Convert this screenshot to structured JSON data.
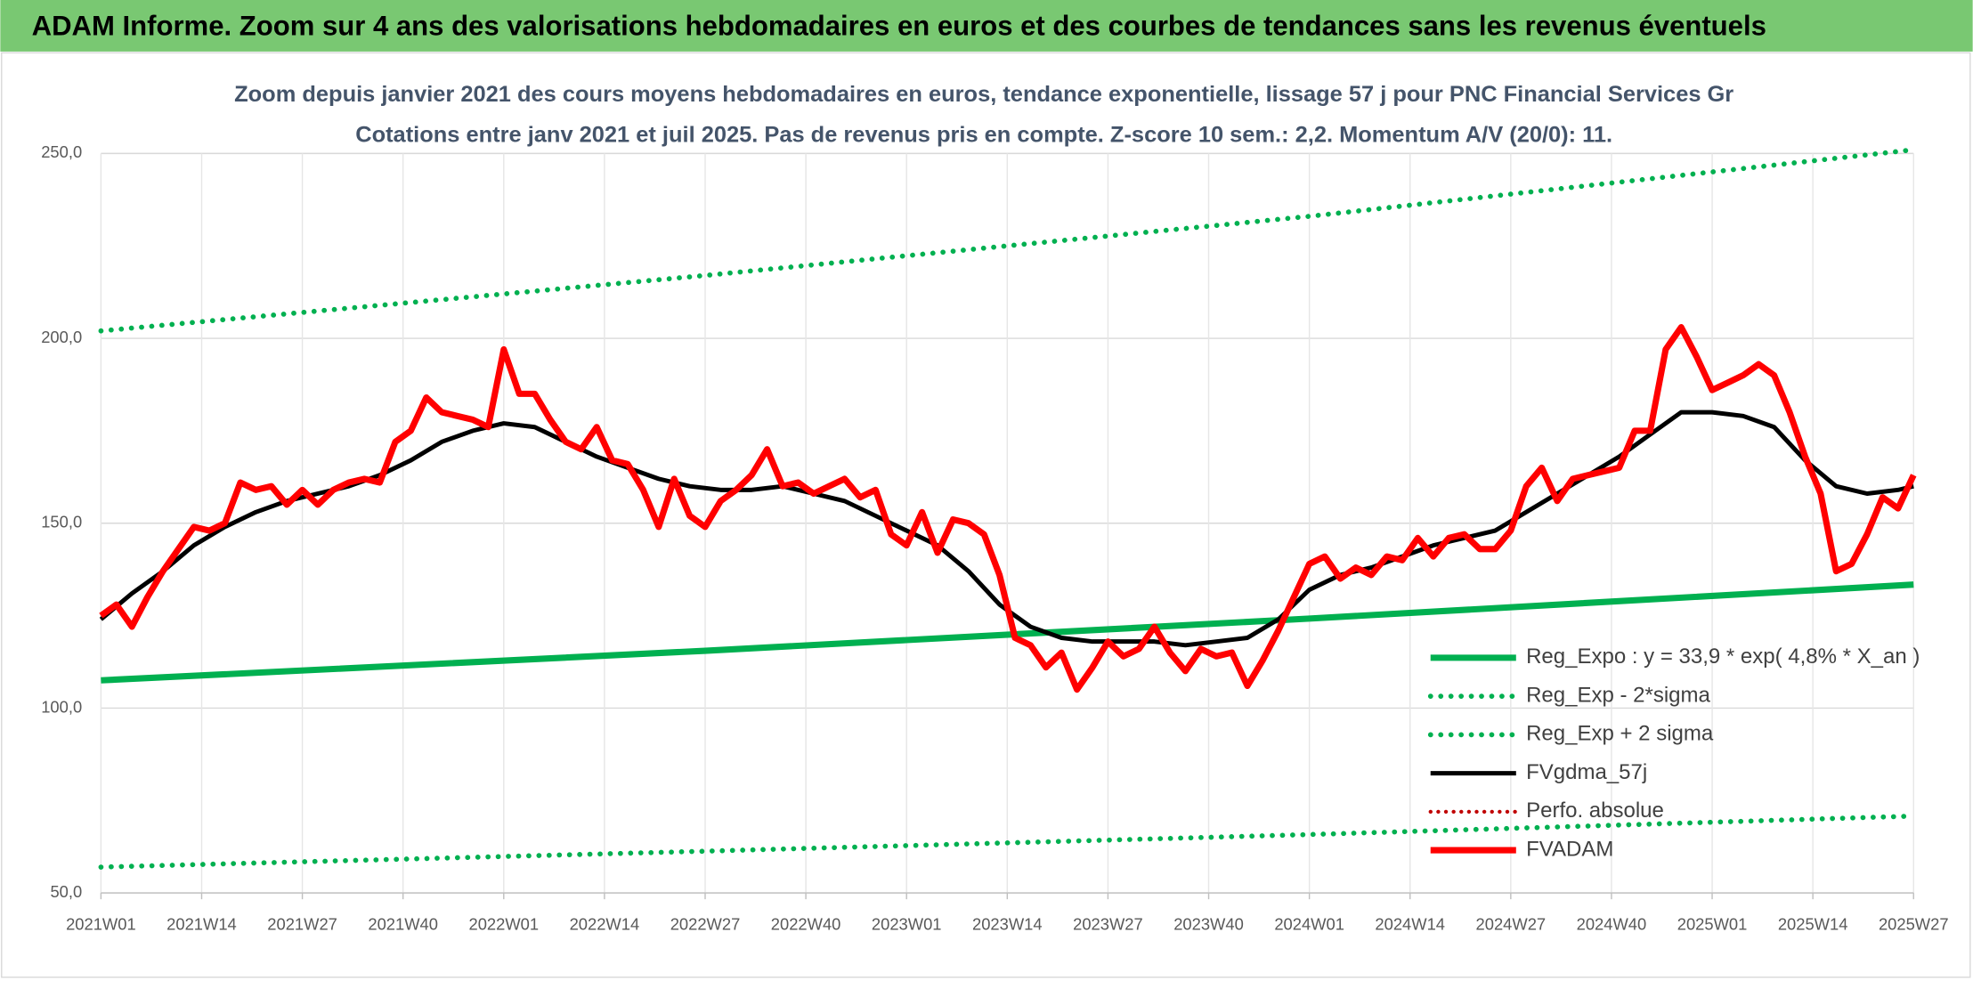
{
  "header": {
    "title": "ADAM Informe. Zoom sur 4 ans des valorisations hebdomadaires en euros et des courbes de tendances sans les revenus éventuels"
  },
  "chart_data": {
    "type": "line",
    "title": "Zoom depuis janvier 2021 des cours moyens hebdomadaires en euros, tendance exponentielle, lissage 57 j pour PNC Financial Services Gr",
    "subtitle": "Cotations entre janv 2021 et juil 2025. Pas de revenus pris en compte. Z-score 10 sem.: 2,2. Momentum A/V (20/0): 11.",
    "xlim": [
      0,
      234
    ],
    "xticks": [
      {
        "value": 0,
        "label": "2021W01"
      },
      {
        "value": 13,
        "label": "2021W14"
      },
      {
        "value": 26,
        "label": "2021W27"
      },
      {
        "value": 39,
        "label": "2021W40"
      },
      {
        "value": 52,
        "label": "2022W01"
      },
      {
        "value": 65,
        "label": "2022W14"
      },
      {
        "value": 78,
        "label": "2022W27"
      },
      {
        "value": 91,
        "label": "2022W40"
      },
      {
        "value": 104,
        "label": "2023W01"
      },
      {
        "value": 117,
        "label": "2023W14"
      },
      {
        "value": 130,
        "label": "2023W27"
      },
      {
        "value": 143,
        "label": "2023W40"
      },
      {
        "value": 156,
        "label": "2024W01"
      },
      {
        "value": 169,
        "label": "2024W14"
      },
      {
        "value": 182,
        "label": "2024W27"
      },
      {
        "value": 195,
        "label": "2024W40"
      },
      {
        "value": 208,
        "label": "2025W01"
      },
      {
        "value": 221,
        "label": "2025W14"
      },
      {
        "value": 234,
        "label": "2025W27"
      }
    ],
    "ylim": [
      50,
      250
    ],
    "yticks": [
      {
        "value": 50,
        "label": "50,0"
      },
      {
        "value": 100,
        "label": "100,0"
      },
      {
        "value": 150,
        "label": "150,0"
      },
      {
        "value": 200,
        "label": "200,0"
      },
      {
        "value": 250,
        "label": "250,0"
      }
    ],
    "grid": true,
    "series": [
      {
        "name": "Reg_Expo : y = 33,9 * exp( 4,8% *  X_an )",
        "color": "#00b050",
        "style": "solid",
        "width": 5,
        "x": [
          0,
          78,
          156,
          234
        ],
        "values": [
          107.5,
          115.5,
          124.2,
          133.4
        ]
      },
      {
        "name": "Reg_Exp - 2*sigma",
        "color": "#00b050",
        "style": "dotted",
        "width": 4,
        "x": [
          0,
          78,
          156,
          234
        ],
        "values": [
          57,
          61.3,
          65.8,
          70.8
        ]
      },
      {
        "name": "Reg_Exp + 2 sigma",
        "color": "#00b050",
        "style": "dotted",
        "width": 4,
        "x": [
          0,
          78,
          156,
          234
        ],
        "values": [
          202,
          217,
          233,
          251
        ]
      },
      {
        "name": "FVgdma_57j",
        "color": "#000000",
        "style": "solid",
        "width": 3.5,
        "x": [
          0,
          4,
          8,
          12,
          16,
          20,
          24,
          28,
          32,
          36,
          40,
          44,
          48,
          52,
          56,
          60,
          64,
          68,
          72,
          76,
          80,
          84,
          88,
          92,
          96,
          100,
          104,
          108,
          112,
          116,
          120,
          124,
          128,
          132,
          136,
          140,
          144,
          148,
          152,
          156,
          160,
          164,
          168,
          172,
          176,
          180,
          184,
          188,
          192,
          196,
          200,
          204,
          208,
          212,
          216,
          220,
          224,
          228,
          232,
          234
        ],
        "values": [
          124,
          131,
          137,
          144,
          149,
          153,
          156,
          158,
          160,
          163,
          167,
          172,
          175,
          177,
          176,
          172,
          168,
          165,
          162,
          160,
          159,
          159,
          160,
          158,
          156,
          152,
          148,
          144,
          137,
          128,
          122,
          119,
          118,
          118,
          118,
          117,
          118,
          119,
          124,
          132,
          136,
          138,
          141,
          144,
          146,
          148,
          153,
          158,
          163,
          168,
          174,
          180,
          180,
          179,
          176,
          167,
          160,
          158,
          159,
          160
        ]
      },
      {
        "name": "Perfo. absolue",
        "color": "#c00000",
        "style": "dotted",
        "width": 3
      },
      {
        "name": "FVADAM",
        "color": "#ff0000",
        "style": "solid",
        "width": 5,
        "x": [
          0,
          2,
          4,
          6,
          8,
          10,
          12,
          14,
          16,
          18,
          20,
          22,
          24,
          26,
          28,
          30,
          32,
          34,
          36,
          38,
          40,
          42,
          44,
          46,
          48,
          50,
          52,
          54,
          56,
          58,
          60,
          62,
          64,
          66,
          68,
          70,
          72,
          74,
          76,
          78,
          80,
          82,
          84,
          86,
          88,
          90,
          92,
          94,
          96,
          98,
          100,
          102,
          104,
          106,
          108,
          110,
          112,
          114,
          116,
          118,
          120,
          122,
          124,
          126,
          128,
          130,
          132,
          134,
          136,
          138,
          140,
          142,
          144,
          146,
          148,
          150,
          152,
          154,
          156,
          158,
          160,
          162,
          164,
          166,
          168,
          170,
          172,
          174,
          176,
          178,
          180,
          182,
          184,
          186,
          188,
          190,
          192,
          194,
          196,
          198,
          200,
          202,
          204,
          206,
          208,
          210,
          212,
          214,
          216,
          218,
          220,
          222,
          224,
          226,
          228,
          230,
          232,
          234
        ],
        "values": [
          125,
          128,
          122,
          130,
          137,
          143,
          149,
          148,
          150,
          161,
          159,
          160,
          155,
          159,
          155,
          159,
          161,
          162,
          161,
          172,
          175,
          184,
          180,
          179,
          178,
          176,
          197,
          185,
          185,
          178,
          172,
          170,
          176,
          167,
          166,
          159,
          149,
          162,
          152,
          149,
          156,
          159,
          163,
          170,
          160,
          161,
          158,
          160,
          162,
          157,
          159,
          147,
          144,
          153,
          142,
          151,
          150,
          147,
          136,
          119,
          117,
          111,
          115,
          105,
          111,
          118,
          114,
          116,
          122,
          115,
          110,
          116,
          114,
          115,
          106,
          113,
          121,
          130,
          139,
          141,
          135,
          138,
          136,
          141,
          140,
          146,
          141,
          146,
          147,
          143,
          143,
          148,
          160,
          165,
          156,
          162,
          163,
          164,
          165,
          175,
          175,
          197,
          203,
          195,
          186,
          188,
          190,
          193,
          190,
          180,
          168,
          158,
          137,
          139,
          147,
          157,
          154,
          163
        ]
      }
    ]
  }
}
